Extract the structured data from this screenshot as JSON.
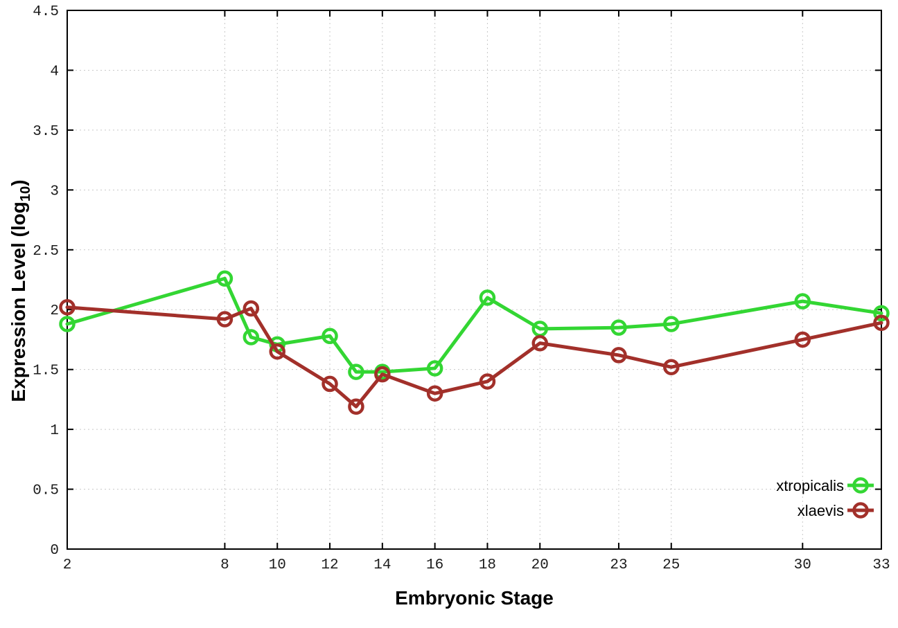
{
  "figure": {
    "background": "#ffffff",
    "border_color": "#000000",
    "grid_color": "#c8c8c8"
  },
  "chart_data": {
    "type": "line",
    "title": "",
    "xlabel": "Embryonic Stage",
    "ylabel_prefix": "Expression Level (log",
    "ylabel_sub": "10",
    "ylabel_suffix": ")",
    "x": [
      2,
      8,
      9,
      10,
      12,
      13,
      14,
      16,
      18,
      20,
      23,
      25,
      30,
      33
    ],
    "x_tick_labels": [
      2,
      8,
      10,
      12,
      14,
      16,
      18,
      20,
      23,
      25,
      30,
      33
    ],
    "y_tick_labels": [
      0,
      0.5,
      1,
      1.5,
      2,
      2.5,
      3,
      3.5,
      4,
      4.5
    ],
    "xlim": [
      2,
      33
    ],
    "ylim": [
      0,
      4.5
    ],
    "grid": true,
    "marker": "open-circle",
    "legend_position": "bottom-right",
    "series": [
      {
        "name": "xtropicalis",
        "color": "#33d633",
        "values": [
          1.88,
          2.26,
          1.77,
          1.71,
          1.78,
          1.48,
          1.48,
          1.51,
          2.1,
          1.84,
          1.85,
          1.88,
          2.07,
          1.97
        ]
      },
      {
        "name": "xlaevis",
        "color": "#a2302a",
        "values": [
          2.02,
          1.92,
          2.01,
          1.65,
          1.38,
          1.19,
          1.46,
          1.3,
          1.4,
          1.72,
          1.62,
          1.52,
          1.75,
          1.89
        ]
      }
    ]
  }
}
